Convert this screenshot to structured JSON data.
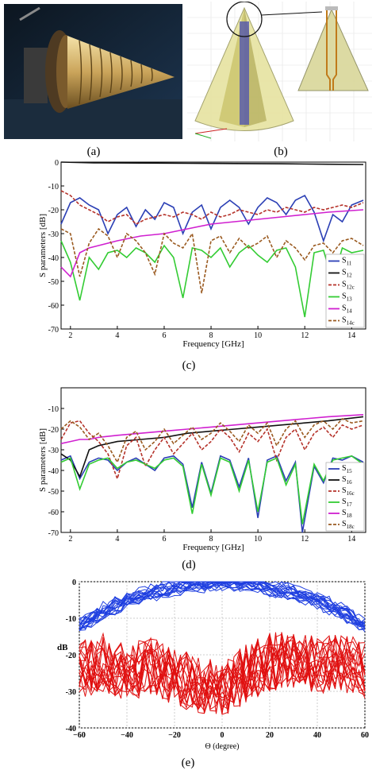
{
  "captions": {
    "a": "(a)",
    "b": "(b)",
    "c": "(c)",
    "d": "(d)",
    "e": "(e)"
  },
  "chart_data": [
    {
      "id": "c",
      "type": "line",
      "xlabel": "Frequency [GHz]",
      "ylabel": "S parameters [dB]",
      "xlim": [
        1.6,
        14.6
      ],
      "ylim": [
        -70,
        0
      ],
      "xticks": [
        2,
        4,
        6,
        8,
        10,
        12,
        14
      ],
      "yticks": [
        0,
        -10,
        -20,
        -30,
        -40,
        -50,
        -60,
        -70
      ],
      "legend_position": "bottom-right",
      "series": [
        {
          "name": "S11",
          "label_main": "S",
          "label_sub": "11",
          "color": "#2b3fb5",
          "dash": "",
          "x": [
            1.6,
            2.0,
            2.4,
            2.8,
            3.2,
            3.6,
            4.0,
            4.4,
            4.8,
            5.2,
            5.6,
            6.0,
            6.4,
            6.8,
            7.2,
            7.6,
            8.0,
            8.4,
            8.8,
            9.2,
            9.6,
            10.0,
            10.4,
            10.8,
            11.2,
            11.6,
            12.0,
            12.4,
            12.8,
            13.2,
            13.6,
            14.0,
            14.5
          ],
          "y": [
            -26,
            -17,
            -15,
            -18,
            -20,
            -30,
            -22,
            -19,
            -27,
            -20,
            -24,
            -17,
            -19,
            -30,
            -21,
            -18,
            -28,
            -19,
            -16,
            -19,
            -26,
            -19,
            -15,
            -17,
            -22,
            -16,
            -14,
            -21,
            -33,
            -22,
            -25,
            -18,
            -16
          ]
        },
        {
          "name": "S12",
          "label_main": "S",
          "label_sub": "12",
          "color": "#111111",
          "dash": "",
          "x": [
            1.6,
            3.0,
            5.0,
            7.0,
            9.0,
            11.0,
            13.0,
            14.5
          ],
          "y": [
            0,
            -0.3,
            -0.4,
            -0.5,
            -0.6,
            -0.7,
            -0.9,
            -1.0
          ]
        },
        {
          "name": "S12c",
          "label_main": "S",
          "label_sub": "12c",
          "color": "#b5322a",
          "dash": "4,2",
          "x": [
            1.6,
            2.0,
            2.4,
            2.8,
            3.2,
            3.6,
            4.0,
            4.4,
            4.8,
            5.2,
            5.6,
            6.0,
            6.4,
            6.8,
            7.2,
            7.6,
            8.0,
            8.4,
            8.8,
            9.2,
            9.6,
            10.0,
            10.4,
            10.8,
            11.2,
            11.6,
            12.0,
            12.4,
            12.8,
            13.2,
            13.6,
            14.0,
            14.5
          ],
          "y": [
            -12,
            -14,
            -18,
            -20,
            -22,
            -25,
            -23,
            -22,
            -26,
            -24,
            -23,
            -22,
            -23,
            -21,
            -22,
            -24,
            -21,
            -23,
            -22,
            -20,
            -21,
            -22,
            -20,
            -21,
            -19,
            -20,
            -21,
            -19,
            -20,
            -19,
            -18,
            -19,
            -17
          ]
        },
        {
          "name": "S13",
          "label_main": "S",
          "label_sub": "13",
          "color": "#33cc33",
          "dash": "",
          "x": [
            1.6,
            2.0,
            2.4,
            2.8,
            3.2,
            3.6,
            4.0,
            4.4,
            4.8,
            5.2,
            5.6,
            6.0,
            6.4,
            6.8,
            7.2,
            7.6,
            8.0,
            8.4,
            8.8,
            9.2,
            9.6,
            10.0,
            10.4,
            10.8,
            11.2,
            11.6,
            12.0,
            12.4,
            12.8,
            13.2,
            13.6,
            14.0,
            14.5
          ],
          "y": [
            -33,
            -42,
            -58,
            -40,
            -45,
            -38,
            -37,
            -40,
            -36,
            -38,
            -42,
            -35,
            -40,
            -57,
            -36,
            -37,
            -40,
            -36,
            -44,
            -38,
            -35,
            -39,
            -42,
            -37,
            -36,
            -44,
            -65,
            -38,
            -37,
            -50,
            -36,
            -38,
            -37
          ]
        },
        {
          "name": "S14",
          "label_main": "S",
          "label_sub": "14",
          "color": "#d020d0",
          "dash": "",
          "x": [
            1.6,
            2.0,
            2.4,
            2.8,
            3.2,
            4.0,
            5.0,
            6.0,
            7.0,
            8.0,
            9.0,
            10.0,
            11.0,
            12.0,
            13.0,
            14.5
          ],
          "y": [
            -44,
            -48,
            -38,
            -36,
            -35,
            -33,
            -31,
            -30,
            -28,
            -26,
            -25,
            -24,
            -23,
            -22,
            -21,
            -20
          ]
        },
        {
          "name": "S14c",
          "label_main": "S",
          "label_sub": "14c",
          "color": "#9a5a20",
          "dash": "4,2",
          "x": [
            1.6,
            2.0,
            2.4,
            2.8,
            3.2,
            3.6,
            4.0,
            4.4,
            4.8,
            5.2,
            5.6,
            6.0,
            6.4,
            6.8,
            7.2,
            7.6,
            8.0,
            8.4,
            8.8,
            9.2,
            9.6,
            10.0,
            10.4,
            10.8,
            11.2,
            11.6,
            12.0,
            12.4,
            12.8,
            13.2,
            13.6,
            14.0,
            14.5
          ],
          "y": [
            -28,
            -30,
            -48,
            -34,
            -28,
            -31,
            -40,
            -30,
            -33,
            -38,
            -47,
            -30,
            -34,
            -36,
            -30,
            -55,
            -33,
            -31,
            -38,
            -32,
            -36,
            -34,
            -31,
            -40,
            -33,
            -36,
            -41,
            -35,
            -34,
            -38,
            -33,
            -32,
            -35
          ]
        }
      ]
    },
    {
      "id": "d",
      "type": "line",
      "xlabel": "Frequency [GHz]",
      "ylabel": "S parameters [dB]",
      "xlim": [
        1.6,
        14.6
      ],
      "ylim": [
        -70,
        0
      ],
      "xticks": [
        2,
        4,
        6,
        8,
        10,
        12,
        14
      ],
      "yticks": [
        -10,
        -20,
        -30,
        -40,
        -50,
        -60,
        -70
      ],
      "legend_position": "bottom-right",
      "series": [
        {
          "name": "S15",
          "label_main": "S",
          "label_sub": "15",
          "color": "#2b3fb5",
          "dash": "",
          "x": [
            1.6,
            2.0,
            2.4,
            2.8,
            3.2,
            3.6,
            4.0,
            4.4,
            4.8,
            5.2,
            5.6,
            6.0,
            6.4,
            6.8,
            7.2,
            7.6,
            8.0,
            8.4,
            8.8,
            9.2,
            9.6,
            10.0,
            10.4,
            10.8,
            11.2,
            11.6,
            11.9,
            12.4,
            12.8,
            13.2,
            13.6,
            14.0,
            14.5
          ],
          "y": [
            -35,
            -33,
            -44,
            -36,
            -34,
            -35,
            -40,
            -36,
            -34,
            -37,
            -40,
            -34,
            -33,
            -37,
            -58,
            -36,
            -51,
            -33,
            -35,
            -48,
            -34,
            -63,
            -35,
            -33,
            -45,
            -36,
            -70,
            -38,
            -46,
            -34,
            -35,
            -33,
            -36
          ]
        },
        {
          "name": "S16",
          "label_main": "S",
          "label_sub": "16",
          "color": "#111111",
          "dash": "",
          "x": [
            1.6,
            2.0,
            2.4,
            2.8,
            3.2,
            4.0,
            5.0,
            6.0,
            7.0,
            8.0,
            9.0,
            10.0,
            11.0,
            12.0,
            13.0,
            14.5
          ],
          "y": [
            -32,
            -35,
            -43,
            -30,
            -28,
            -26,
            -25,
            -24,
            -22,
            -21,
            -20,
            -19,
            -18,
            -17,
            -16,
            -14
          ]
        },
        {
          "name": "S16c",
          "label_main": "S",
          "label_sub": "16c",
          "color": "#b5322a",
          "dash": "4,2",
          "x": [
            1.6,
            2.0,
            2.4,
            2.8,
            3.2,
            3.6,
            4.0,
            4.4,
            4.8,
            5.2,
            5.6,
            6.0,
            6.4,
            6.8,
            7.2,
            7.6,
            8.0,
            8.4,
            8.8,
            9.2,
            9.6,
            10.0,
            10.4,
            10.8,
            11.2,
            11.6,
            12.0,
            12.4,
            12.8,
            13.2,
            13.6,
            14.0,
            14.5
          ],
          "y": [
            -25,
            -17,
            -16,
            -22,
            -26,
            -32,
            -44,
            -28,
            -24,
            -38,
            -30,
            -24,
            -32,
            -27,
            -22,
            -30,
            -26,
            -20,
            -24,
            -31,
            -22,
            -26,
            -20,
            -35,
            -24,
            -20,
            -30,
            -22,
            -19,
            -24,
            -18,
            -20,
            -18
          ]
        },
        {
          "name": "S17",
          "label_main": "S",
          "label_sub": "17",
          "color": "#33cc33",
          "dash": "",
          "x": [
            1.6,
            2.0,
            2.4,
            2.8,
            3.2,
            3.6,
            4.0,
            4.4,
            4.8,
            5.2,
            5.6,
            6.0,
            6.4,
            6.8,
            7.2,
            7.6,
            8.0,
            8.4,
            8.8,
            9.2,
            9.6,
            10.0,
            10.4,
            10.8,
            11.2,
            11.6,
            11.9,
            12.4,
            12.8,
            13.2,
            13.6,
            14.0,
            14.5
          ],
          "y": [
            -36,
            -34,
            -49,
            -37,
            -35,
            -34,
            -39,
            -36,
            -35,
            -37,
            -39,
            -35,
            -34,
            -38,
            -61,
            -37,
            -52,
            -34,
            -36,
            -50,
            -35,
            -60,
            -36,
            -34,
            -47,
            -37,
            -66,
            -37,
            -45,
            -35,
            -34,
            -33,
            -37
          ]
        },
        {
          "name": "S18",
          "label_main": "S",
          "label_sub": "18",
          "color": "#d020d0",
          "dash": "",
          "x": [
            1.6,
            2.0,
            2.4,
            2.8,
            3.2,
            4.0,
            5.0,
            6.0,
            7.0,
            8.0,
            9.0,
            10.0,
            11.0,
            12.0,
            13.0,
            14.5
          ],
          "y": [
            -27,
            -26,
            -25,
            -25,
            -24,
            -23,
            -22,
            -21,
            -20,
            -19,
            -18,
            -17,
            -16,
            -15,
            -14,
            -13
          ]
        },
        {
          "name": "S18c",
          "label_main": "S",
          "label_sub": "18c",
          "color": "#9a5a20",
          "dash": "4,2",
          "x": [
            1.6,
            2.0,
            2.4,
            2.8,
            3.2,
            3.6,
            4.0,
            4.4,
            4.8,
            5.2,
            5.6,
            6.0,
            6.4,
            6.8,
            7.2,
            7.6,
            8.0,
            8.4,
            8.8,
            9.2,
            9.6,
            10.0,
            10.4,
            10.8,
            11.2,
            11.6,
            12.0,
            12.4,
            12.8,
            13.2,
            13.6,
            14.0,
            14.5
          ],
          "y": [
            -20,
            -16,
            -19,
            -25,
            -22,
            -28,
            -36,
            -24,
            -21,
            -30,
            -26,
            -20,
            -27,
            -23,
            -19,
            -25,
            -22,
            -17,
            -21,
            -26,
            -18,
            -22,
            -17,
            -28,
            -20,
            -16,
            -24,
            -18,
            -16,
            -20,
            -15,
            -17,
            -16
          ]
        }
      ]
    },
    {
      "id": "e",
      "type": "line",
      "xlabel": "Θ (degree)",
      "ylabel": "dB",
      "xlim": [
        -60,
        60
      ],
      "ylim": [
        -40,
        0
      ],
      "xticks": [
        -60,
        -40,
        -20,
        0,
        20,
        40,
        60
      ],
      "yticks": [
        0,
        -10,
        -20,
        -30,
        -40
      ],
      "grid": true,
      "series_groups": [
        {
          "color": "#1f3fe0",
          "count": 18,
          "description_shape": "co-polar main beam",
          "x": [
            -60,
            -50,
            -40,
            -30,
            -20,
            -10,
            0,
            10,
            20,
            30,
            40,
            50,
            60
          ],
          "y": [
            -12,
            -8,
            -5,
            -3,
            -1.5,
            -0.5,
            0,
            -0.5,
            -1.5,
            -3,
            -5,
            -8,
            -12
          ]
        },
        {
          "color": "#e01010",
          "count": 18,
          "description_shape": "cross-polar",
          "x": [
            -60,
            -50,
            -40,
            -30,
            -20,
            -10,
            0,
            10,
            20,
            30,
            40,
            50,
            60
          ],
          "y": [
            -24,
            -22,
            -25,
            -23,
            -26,
            -28,
            -30,
            -25,
            -22,
            -21,
            -23,
            -22,
            -24
          ]
        }
      ]
    }
  ]
}
